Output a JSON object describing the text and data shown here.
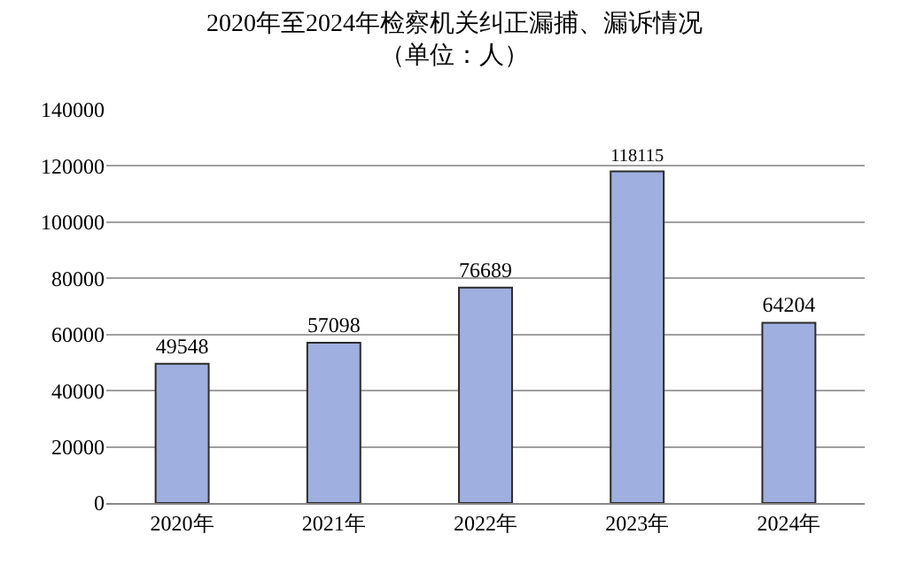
{
  "chart_data": {
    "type": "bar",
    "title": "2020年至2024年检察机关纠正漏捕、漏诉情况",
    "subtitle": "（单位：人）",
    "categories": [
      "2020年",
      "2021年",
      "2022年",
      "2023年",
      "2024年"
    ],
    "values": [
      49548,
      57098,
      76689,
      118115,
      64204
    ],
    "color": "#9fafe0",
    "ylim": [
      0,
      140000
    ],
    "yticks": [
      0,
      20000,
      40000,
      60000,
      80000,
      100000,
      120000,
      140000
    ],
    "grid": "y",
    "data_labels": true
  }
}
